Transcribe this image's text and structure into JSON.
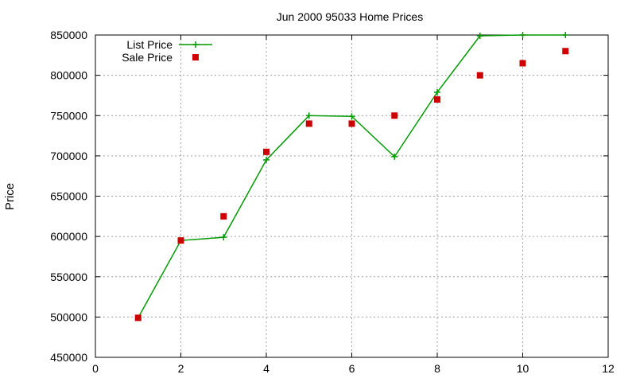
{
  "chart_data": {
    "type": "line",
    "title": "Jun 2000 95033 Home Prices",
    "xlabel": "",
    "ylabel": "Price",
    "xlim": [
      0,
      12
    ],
    "ylim": [
      450000,
      850000
    ],
    "x_ticks": [
      0,
      2,
      4,
      6,
      8,
      10,
      12
    ],
    "y_ticks": [
      450000,
      500000,
      550000,
      600000,
      650000,
      700000,
      750000,
      800000,
      850000
    ],
    "grid": true,
    "legend_position": "top-left",
    "series": [
      {
        "name": "List Price",
        "style": "line+cross",
        "color": "#009900",
        "points": [
          {
            "x": 1,
            "y": 499000
          },
          {
            "x": 2,
            "y": 595000
          },
          {
            "x": 3,
            "y": 599000
          },
          {
            "x": 4,
            "y": 695000
          },
          {
            "x": 5,
            "y": 750000
          },
          {
            "x": 6,
            "y": 749000
          },
          {
            "x": 7,
            "y": 699000
          },
          {
            "x": 8,
            "y": 779000
          },
          {
            "x": 9,
            "y": 849000
          },
          {
            "x": 10,
            "y": 850000
          },
          {
            "x": 11,
            "y": 850000
          }
        ]
      },
      {
        "name": "Sale Price",
        "style": "square",
        "color": "#cc0000",
        "points": [
          {
            "x": 1,
            "y": 499000
          },
          {
            "x": 2,
            "y": 595000
          },
          {
            "x": 3,
            "y": 625000
          },
          {
            "x": 4,
            "y": 705000
          },
          {
            "x": 5,
            "y": 740000
          },
          {
            "x": 6,
            "y": 740000
          },
          {
            "x": 7,
            "y": 750000
          },
          {
            "x": 8,
            "y": 770000
          },
          {
            "x": 9,
            "y": 800000
          },
          {
            "x": 10,
            "y": 815000
          },
          {
            "x": 11,
            "y": 830000
          }
        ]
      }
    ]
  }
}
